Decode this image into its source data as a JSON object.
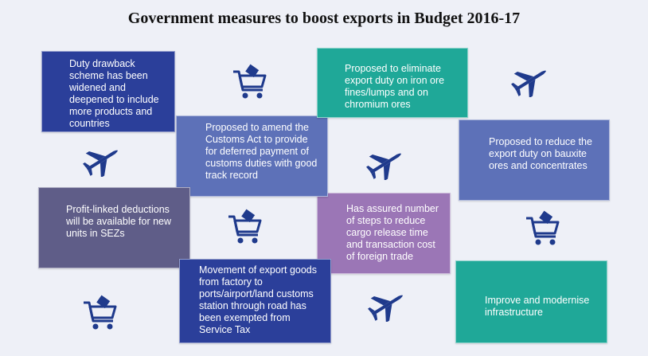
{
  "title": "Government measures to boost exports in Budget 2016-17",
  "colors": {
    "dark_blue": "#2b3f9a",
    "mid_blue": "#5d71b8",
    "teal": "#1fa898",
    "slate": "#5f5d88",
    "purple": "#9b76b6",
    "icon_navy": "#1f3a8c"
  },
  "measures": [
    {
      "id": "duty-drawback",
      "text": "Duty drawback scheme has been widened and deepened to include more products and countries"
    },
    {
      "id": "customs-act",
      "text": "Proposed to amend the Customs Act to provide for deferred payment of customs duties with good track record"
    },
    {
      "id": "iron-ore",
      "text": "Proposed to eliminate export duty on iron ore fines/lumps and on chromium ores"
    },
    {
      "id": "bauxite",
      "text": "Proposed to reduce the export duty on bauxite ores and concentrates"
    },
    {
      "id": "sez",
      "text": "Profit-linked deductions will be available for new units in SEZs"
    },
    {
      "id": "cargo-release",
      "text": "Has assured number of steps to reduce cargo release time and transaction cost of foreign trade"
    },
    {
      "id": "service-tax",
      "text": "Movement of export goods from factory to ports/airport/land customs station through road has been exempted from Service Tax"
    },
    {
      "id": "infrastructure",
      "text": "Improve and modernise infrastructure"
    }
  ],
  "icons": [
    "shopping-cart-icon",
    "airplane-icon"
  ]
}
